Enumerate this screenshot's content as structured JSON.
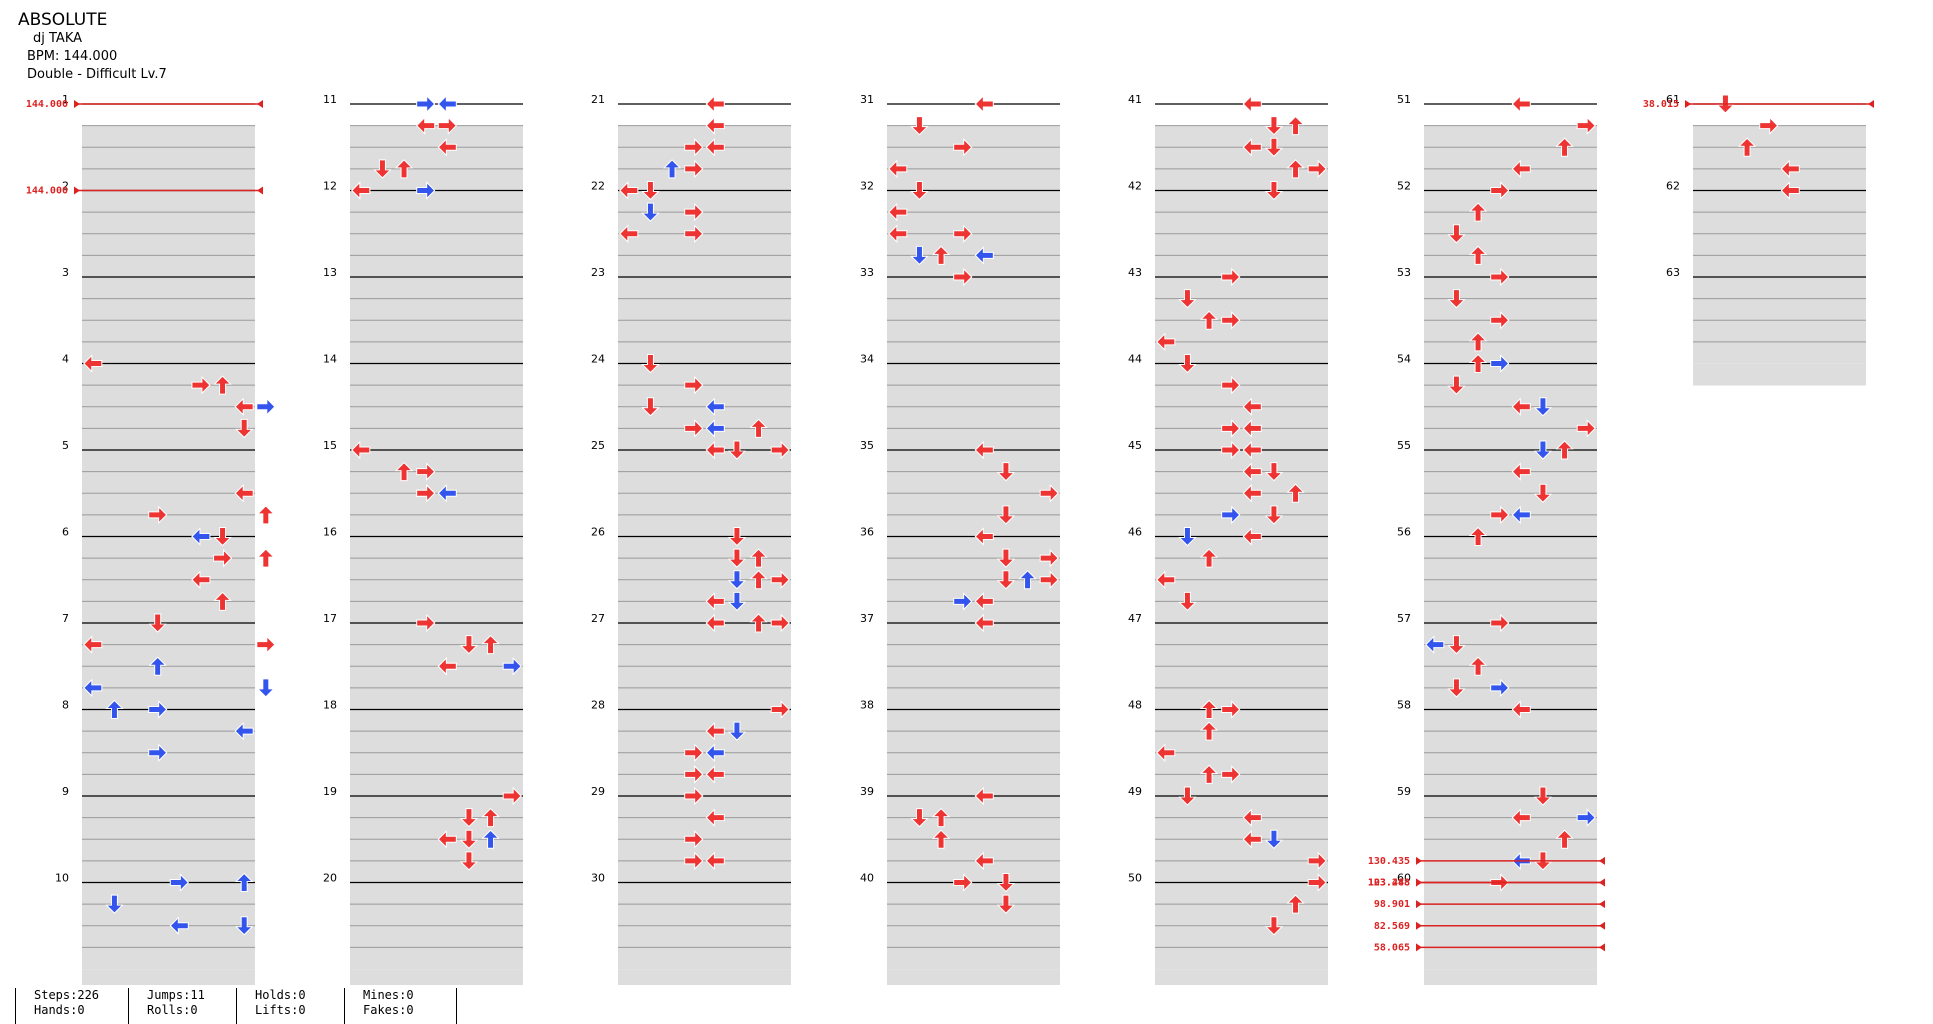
{
  "song": {
    "title": "ABSOLUTE",
    "artist": "dj TAKA",
    "bpm_label": "BPM: 144.000",
    "difficulty_label": "Double - Difficult  Lv.7"
  },
  "stats": [
    {
      "line1": "Steps:226",
      "line2": "Hands:0"
    },
    {
      "line1": "Jumps:11",
      "line2": "Rolls:0"
    },
    {
      "line1": "Holds:0",
      "line2": "Lifts:0"
    },
    {
      "line1": "Mines:0",
      "line2": "Fakes:0"
    }
  ],
  "measure_numbers": [
    "1",
    "2",
    "3",
    "4",
    "5",
    "6",
    "7",
    "8",
    "9",
    "10",
    "11",
    "12",
    "13",
    "14",
    "15",
    "16",
    "17",
    "18",
    "19",
    "20",
    "21",
    "22",
    "23",
    "24",
    "25",
    "26",
    "27",
    "28",
    "29",
    "30",
    "31",
    "32",
    "33",
    "34",
    "35",
    "36",
    "37",
    "38",
    "39",
    "40",
    "41",
    "42",
    "43",
    "44",
    "45",
    "46",
    "47",
    "48",
    "49",
    "50",
    "51",
    "52",
    "53",
    "54",
    "55",
    "56",
    "57",
    "58",
    "59",
    "60",
    "61",
    "62",
    "63"
  ],
  "bpm_changes": [
    {
      "measure": 1,
      "label": "144.000"
    },
    {
      "measure": 2,
      "label": "144.000"
    },
    {
      "measure": 59.75,
      "label": "130.435"
    },
    {
      "measure": 60,
      "label": "123.288"
    },
    {
      "measure": 60,
      "label": "103.448"
    },
    {
      "measure": 60.25,
      "label": "98.901"
    },
    {
      "measure": 60.5,
      "label": "82.569"
    },
    {
      "measure": 60.75,
      "label": "58.065"
    },
    {
      "measure": 61,
      "label": "38.015"
    }
  ],
  "colors": {
    "quarter": "#ee3333",
    "eighth": "#3355ee",
    "shade": "#dddddd",
    "bpm": "#dd2222"
  },
  "notes": [
    [
      4,
      0,
      0,
      "left",
      "q"
    ],
    [
      4,
      1,
      5,
      "right",
      "q"
    ],
    [
      4,
      1,
      6,
      "up",
      "q"
    ],
    [
      4,
      2,
      7,
      "left",
      "q"
    ],
    [
      4,
      2,
      8,
      "right",
      "e"
    ],
    [
      4,
      3,
      7,
      "down",
      "q"
    ],
    [
      5,
      2,
      7,
      "left",
      "q"
    ],
    [
      5,
      3,
      3,
      "right",
      "q"
    ],
    [
      5,
      3,
      8,
      "up",
      "q"
    ],
    [
      5,
      4,
      6,
      "down",
      "q"
    ],
    [
      5,
      4,
      5,
      "left",
      "e"
    ],
    [
      6,
      1,
      8,
      "up",
      "q"
    ],
    [
      6,
      1,
      6,
      "right",
      "q"
    ],
    [
      6,
      2,
      5,
      "left",
      "q"
    ],
    [
      6,
      3,
      6,
      "up",
      "q"
    ],
    [
      7,
      0,
      3,
      "down",
      "q"
    ],
    [
      7,
      1,
      0,
      "left",
      "q"
    ],
    [
      7,
      1,
      8,
      "right",
      "q"
    ],
    [
      7,
      2,
      3,
      "up",
      "e"
    ],
    [
      7,
      3,
      0,
      "left",
      "e"
    ],
    [
      7,
      3,
      8,
      "down",
      "e"
    ],
    [
      7,
      4,
      1,
      "up",
      "e"
    ],
    [
      7,
      4,
      3,
      "right",
      "e"
    ],
    [
      7,
      5,
      7,
      "left",
      "e"
    ],
    [
      7,
      6,
      3,
      "right",
      "e"
    ],
    [
      10,
      0,
      7,
      "up",
      "e"
    ],
    [
      10,
      0,
      4,
      "right",
      "e"
    ],
    [
      10,
      1,
      1,
      "down",
      "e"
    ],
    [
      10,
      2,
      4,
      "left",
      "e"
    ],
    [
      10,
      2,
      7,
      "down",
      "e"
    ],
    [
      11,
      0,
      3,
      "right",
      "e"
    ],
    [
      11,
      0,
      4,
      "left",
      "e"
    ],
    [
      11,
      1,
      4,
      "right",
      "q"
    ],
    [
      11,
      1,
      3,
      "left",
      "q"
    ],
    [
      11,
      2,
      4,
      "left",
      "q"
    ],
    [
      11,
      3,
      2,
      "up",
      "q"
    ],
    [
      11,
      3,
      1,
      "down",
      "q"
    ],
    [
      11,
      4,
      0,
      "left",
      "q"
    ],
    [
      11,
      4,
      3,
      "right",
      "e"
    ],
    [
      11,
      4,
      0,
      "left",
      "q"
    ],
    [
      15,
      0,
      0,
      "left",
      "q"
    ],
    [
      15,
      1,
      2,
      "up",
      "q"
    ],
    [
      15,
      1,
      3,
      "right",
      "q"
    ],
    [
      15,
      2,
      3,
      "right",
      "q"
    ],
    [
      15,
      2,
      4,
      "left",
      "e"
    ],
    [
      15,
      2,
      3,
      "right",
      "q"
    ],
    [
      17,
      0,
      3,
      "right",
      "q"
    ],
    [
      17,
      1,
      5,
      "down",
      "q"
    ],
    [
      17,
      1,
      6,
      "up",
      "q"
    ],
    [
      17,
      2,
      4,
      "left",
      "q"
    ],
    [
      17,
      2,
      7,
      "right",
      "e"
    ],
    [
      17,
      2,
      4,
      "left",
      "q"
    ],
    [
      19,
      0,
      7,
      "right",
      "q"
    ],
    [
      19,
      1,
      6,
      "up",
      "q"
    ],
    [
      19,
      1,
      5,
      "down",
      "q"
    ],
    [
      19,
      2,
      4,
      "left",
      "q"
    ],
    [
      19,
      2,
      6,
      "up",
      "e"
    ],
    [
      19,
      2,
      5,
      "down",
      "q"
    ],
    [
      19,
      3,
      5,
      "down",
      "q"
    ],
    [
      21,
      0,
      4,
      "left",
      "q"
    ],
    [
      21,
      1,
      4,
      "left",
      "q"
    ],
    [
      21,
      2,
      4,
      "left",
      "q"
    ],
    [
      21,
      2,
      3,
      "right",
      "q"
    ],
    [
      21,
      3,
      3,
      "right",
      "q"
    ],
    [
      21,
      3,
      2,
      "up",
      "e"
    ],
    [
      21,
      4,
      1,
      "down",
      "q"
    ],
    [
      21,
      4,
      0,
      "left",
      "q"
    ],
    [
      21,
      5,
      1,
      "down",
      "e"
    ],
    [
      21,
      5,
      3,
      "right",
      "q"
    ],
    [
      21,
      6,
      3,
      "right",
      "q"
    ],
    [
      21,
      6,
      0,
      "left",
      "q"
    ],
    [
      24,
      0,
      1,
      "down",
      "q"
    ],
    [
      24,
      1,
      3,
      "right",
      "q"
    ],
    [
      24,
      2,
      1,
      "down",
      "q"
    ],
    [
      24,
      2,
      4,
      "left",
      "e"
    ],
    [
      24,
      3,
      3,
      "right",
      "q"
    ],
    [
      24,
      3,
      4,
      "left",
      "e"
    ],
    [
      24,
      3,
      6,
      "up",
      "q"
    ],
    [
      24,
      4,
      5,
      "down",
      "q"
    ],
    [
      24,
      4,
      4,
      "left",
      "q"
    ],
    [
      24,
      4,
      7,
      "right",
      "q"
    ],
    [
      26,
      0,
      5,
      "down",
      "q"
    ],
    [
      26,
      1,
      6,
      "up",
      "q"
    ],
    [
      26,
      1,
      5,
      "down",
      "q"
    ],
    [
      26,
      2,
      6,
      "up",
      "q"
    ],
    [
      26,
      2,
      5,
      "down",
      "e"
    ],
    [
      26,
      2,
      7,
      "right",
      "q"
    ],
    [
      26,
      3,
      4,
      "left",
      "q"
    ],
    [
      26,
      3,
      5,
      "down",
      "e"
    ],
    [
      26,
      4,
      6,
      "up",
      "q"
    ],
    [
      26,
      4,
      4,
      "left",
      "q"
    ],
    [
      26,
      4,
      7,
      "right",
      "q"
    ],
    [
      28,
      0,
      7,
      "right",
      "q"
    ],
    [
      28,
      1,
      5,
      "down",
      "e"
    ],
    [
      28,
      1,
      4,
      "left",
      "q"
    ],
    [
      28,
      2,
      3,
      "right",
      "q"
    ],
    [
      28,
      2,
      4,
      "left",
      "e"
    ],
    [
      28,
      3,
      3,
      "right",
      "q"
    ],
    [
      28,
      3,
      4,
      "left",
      "q"
    ],
    [
      28,
      3,
      3,
      "right",
      "q"
    ],
    [
      28,
      4,
      3,
      "right",
      "q"
    ],
    [
      28,
      5,
      4,
      "left",
      "q"
    ],
    [
      28,
      6,
      3,
      "right",
      "q"
    ],
    [
      28,
      7,
      3,
      "right",
      "q"
    ],
    [
      28,
      7,
      4,
      "left",
      "q"
    ],
    [
      31,
      0,
      4,
      "left",
      "q"
    ],
    [
      31,
      1,
      1,
      "down",
      "q"
    ],
    [
      31,
      2,
      3,
      "right",
      "q"
    ],
    [
      31,
      3,
      0,
      "left",
      "q"
    ],
    [
      31,
      4,
      1,
      "down",
      "q"
    ],
    [
      31,
      4,
      1,
      "down",
      "q"
    ],
    [
      31,
      5,
      0,
      "left",
      "q"
    ],
    [
      31,
      6,
      3,
      "right",
      "q"
    ],
    [
      31,
      6,
      0,
      "left",
      "q"
    ],
    [
      31,
      7,
      1,
      "down",
      "e"
    ],
    [
      31,
      7,
      2,
      "up",
      "q"
    ],
    [
      31,
      7,
      4,
      "left",
      "e"
    ],
    [
      31,
      8,
      3,
      "right",
      "q"
    ],
    [
      35,
      0,
      4,
      "left",
      "q"
    ],
    [
      35,
      1,
      5,
      "down",
      "q"
    ],
    [
      35,
      2,
      7,
      "right",
      "q"
    ],
    [
      35,
      3,
      5,
      "down",
      "q"
    ],
    [
      35,
      4,
      4,
      "left",
      "q"
    ],
    [
      35,
      5,
      5,
      "down",
      "q"
    ],
    [
      35,
      5,
      7,
      "right",
      "q"
    ],
    [
      35,
      6,
      5,
      "down",
      "q"
    ],
    [
      35,
      6,
      7,
      "right",
      "q"
    ],
    [
      35,
      6,
      6,
      "up",
      "e"
    ],
    [
      35,
      7,
      4,
      "left",
      "q"
    ],
    [
      35,
      7,
      3,
      "right",
      "e"
    ],
    [
      35,
      8,
      4,
      "left",
      "q"
    ],
    [
      39,
      0,
      4,
      "left",
      "q"
    ],
    [
      39,
      1,
      2,
      "up",
      "q"
    ],
    [
      39,
      1,
      1,
      "down",
      "q"
    ],
    [
      39,
      2,
      2,
      "up",
      "q"
    ],
    [
      39,
      3,
      4,
      "left",
      "q"
    ],
    [
      39,
      4,
      5,
      "down",
      "q"
    ],
    [
      39,
      4,
      3,
      "right",
      "q"
    ],
    [
      39,
      5,
      5,
      "down",
      "q"
    ],
    [
      41,
      0,
      4,
      "left",
      "q"
    ],
    [
      41,
      1,
      6,
      "up",
      "q"
    ],
    [
      41,
      1,
      5,
      "down",
      "q"
    ],
    [
      41,
      2,
      4,
      "left",
      "q"
    ],
    [
      41,
      2,
      5,
      "down",
      "q"
    ],
    [
      41,
      3,
      6,
      "up",
      "q"
    ],
    [
      41,
      3,
      7,
      "right",
      "q"
    ],
    [
      41,
      4,
      5,
      "down",
      "q"
    ],
    [
      43,
      0,
      3,
      "right",
      "q"
    ],
    [
      43,
      1,
      1,
      "down",
      "q"
    ],
    [
      43,
      2,
      2,
      "up",
      "q"
    ],
    [
      43,
      2,
      3,
      "right",
      "q"
    ],
    [
      43,
      3,
      0,
      "left",
      "q"
    ],
    [
      43,
      4,
      1,
      "down",
      "q"
    ],
    [
      43,
      5,
      3,
      "right",
      "q"
    ],
    [
      43,
      6,
      4,
      "left",
      "q"
    ],
    [
      43,
      7,
      3,
      "right",
      "q"
    ],
    [
      43,
      7,
      4,
      "left",
      "q"
    ],
    [
      45,
      0,
      3,
      "right",
      "q"
    ],
    [
      45,
      0,
      4,
      "left",
      "q"
    ],
    [
      45,
      1,
      4,
      "left",
      "q"
    ],
    [
      45,
      1,
      5,
      "down",
      "q"
    ],
    [
      45,
      2,
      4,
      "left",
      "q"
    ],
    [
      45,
      2,
      6,
      "up",
      "q"
    ],
    [
      45,
      3,
      5,
      "down",
      "q"
    ],
    [
      45,
      3,
      3,
      "right",
      "e"
    ],
    [
      45,
      4,
      4,
      "left",
      "q"
    ],
    [
      45,
      4,
      1,
      "down",
      "e"
    ],
    [
      45,
      5,
      2,
      "up",
      "q"
    ],
    [
      45,
      6,
      0,
      "left",
      "q"
    ],
    [
      45,
      7,
      1,
      "down",
      "q"
    ],
    [
      48,
      0,
      2,
      "up",
      "q"
    ],
    [
      48,
      0,
      3,
      "right",
      "q"
    ],
    [
      48,
      1,
      2,
      "up",
      "q"
    ],
    [
      48,
      2,
      0,
      "left",
      "q"
    ],
    [
      48,
      3,
      2,
      "up",
      "q"
    ],
    [
      48,
      3,
      3,
      "right",
      "q"
    ],
    [
      48,
      4,
      1,
      "down",
      "q"
    ],
    [
      48,
      5,
      4,
      "left",
      "q"
    ],
    [
      48,
      6,
      4,
      "left",
      "q"
    ],
    [
      48,
      6,
      5,
      "down",
      "e"
    ],
    [
      48,
      7,
      7,
      "right",
      "q"
    ],
    [
      50,
      0,
      7,
      "right",
      "q"
    ],
    [
      50,
      1,
      6,
      "up",
      "q"
    ],
    [
      50,
      2,
      5,
      "down",
      "q"
    ],
    [
      51,
      0,
      4,
      "left",
      "q"
    ],
    [
      51,
      1,
      7,
      "right",
      "q"
    ],
    [
      51,
      2,
      6,
      "up",
      "q"
    ],
    [
      51,
      3,
      4,
      "left",
      "q"
    ],
    [
      51,
      4,
      3,
      "right",
      "q"
    ],
    [
      51,
      5,
      2,
      "up",
      "q"
    ],
    [
      51,
      6,
      1,
      "down",
      "q"
    ],
    [
      51,
      7,
      2,
      "up",
      "q"
    ],
    [
      53,
      0,
      3,
      "right",
      "q"
    ],
    [
      53,
      1,
      1,
      "down",
      "q"
    ],
    [
      53,
      2,
      3,
      "right",
      "q"
    ],
    [
      53,
      3,
      2,
      "up",
      "q"
    ],
    [
      53,
      4,
      2,
      "up",
      "q"
    ],
    [
      53,
      4,
      3,
      "right",
      "e"
    ],
    [
      53,
      5,
      1,
      "down",
      "q"
    ],
    [
      53,
      6,
      4,
      "left",
      "q"
    ],
    [
      53,
      6,
      5,
      "down",
      "e"
    ],
    [
      53,
      7,
      7,
      "right",
      "q"
    ],
    [
      53,
      8,
      6,
      "up",
      "q"
    ],
    [
      53,
      8,
      5,
      "down",
      "e"
    ],
    [
      53,
      9,
      4,
      "left",
      "q"
    ],
    [
      53,
      10,
      5,
      "down",
      "q"
    ],
    [
      53,
      11,
      3,
      "right",
      "q"
    ],
    [
      53,
      11,
      4,
      "left",
      "e"
    ],
    [
      53,
      12,
      2,
      "up",
      "q"
    ],
    [
      57,
      0,
      3,
      "right",
      "q"
    ],
    [
      57,
      1,
      0,
      "left",
      "e"
    ],
    [
      57,
      1,
      1,
      "down",
      "q"
    ],
    [
      57,
      2,
      2,
      "up",
      "q"
    ],
    [
      57,
      3,
      1,
      "down",
      "q"
    ],
    [
      57,
      3,
      3,
      "right",
      "e"
    ],
    [
      57,
      4,
      4,
      "left",
      "q"
    ],
    [
      59,
      0,
      5,
      "down",
      "q"
    ],
    [
      59,
      1,
      7,
      "right",
      "e"
    ],
    [
      59,
      1,
      4,
      "left",
      "q"
    ],
    [
      59,
      2,
      6,
      "up",
      "q"
    ],
    [
      59,
      3,
      5,
      "down",
      "q"
    ],
    [
      59,
      3,
      4,
      "left",
      "e"
    ],
    [
      59,
      4,
      3,
      "right",
      "q"
    ],
    [
      61,
      0,
      1,
      "down",
      "q"
    ],
    [
      61,
      1,
      3,
      "right",
      "q"
    ],
    [
      61,
      2,
      2,
      "up",
      "q"
    ],
    [
      61,
      3,
      4,
      "left",
      "q"
    ],
    [
      61,
      4,
      4,
      "left",
      "q"
    ]
  ]
}
